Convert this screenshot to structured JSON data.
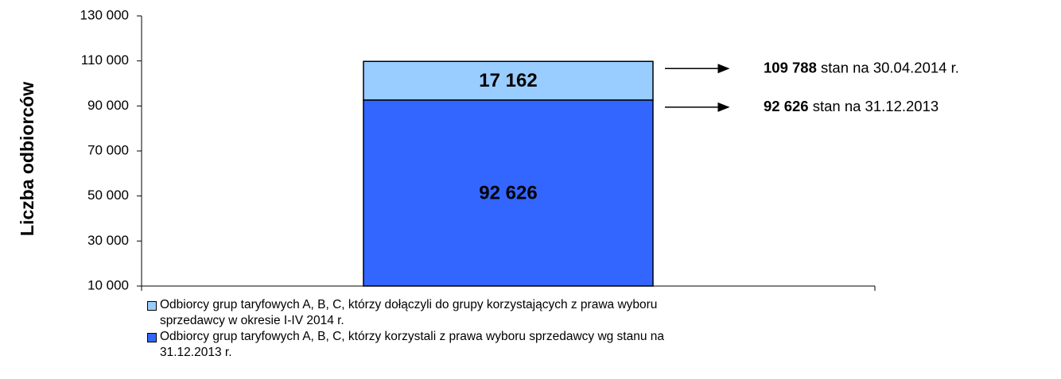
{
  "chart_data": {
    "type": "bar",
    "stacked": true,
    "y_label": "Liczba odbiorców",
    "categories": [
      null
    ],
    "series": [
      {
        "name": "Odbiorcy grup taryfowych A, B, C, którzy korzystali z prawa wyboru sprzedawcy wg stanu na 31.12.2013 r.",
        "color": "#3366ff",
        "values": [
          92626
        ],
        "value_labels": [
          "92 626"
        ]
      },
      {
        "name": "Odbiorcy grup taryfowych A, B, C, którzy dołączyli do grupy korzystających z  prawa wyboru sprzedawcy w okresie I-IV 2014 r.",
        "color": "#99ccff",
        "values": [
          17162
        ],
        "value_labels": [
          "17 162"
        ]
      }
    ],
    "ylim": [
      10000,
      130000
    ],
    "yticks": [
      {
        "value": 10000,
        "label": "10 000"
      },
      {
        "value": 30000,
        "label": "30 000"
      },
      {
        "value": 50000,
        "label": "50 000"
      },
      {
        "value": 70000,
        "label": "70 000"
      },
      {
        "value": 90000,
        "label": "90 000"
      },
      {
        "value": 110000,
        "label": "110 000"
      },
      {
        "value": 130000,
        "label": "130 000"
      }
    ],
    "annotations": [
      {
        "bold": "109 788",
        "text": " stan na 30.04.2014 r."
      },
      {
        "bold": "92 626",
        "text": " stan na 31.12.2013"
      }
    ]
  }
}
